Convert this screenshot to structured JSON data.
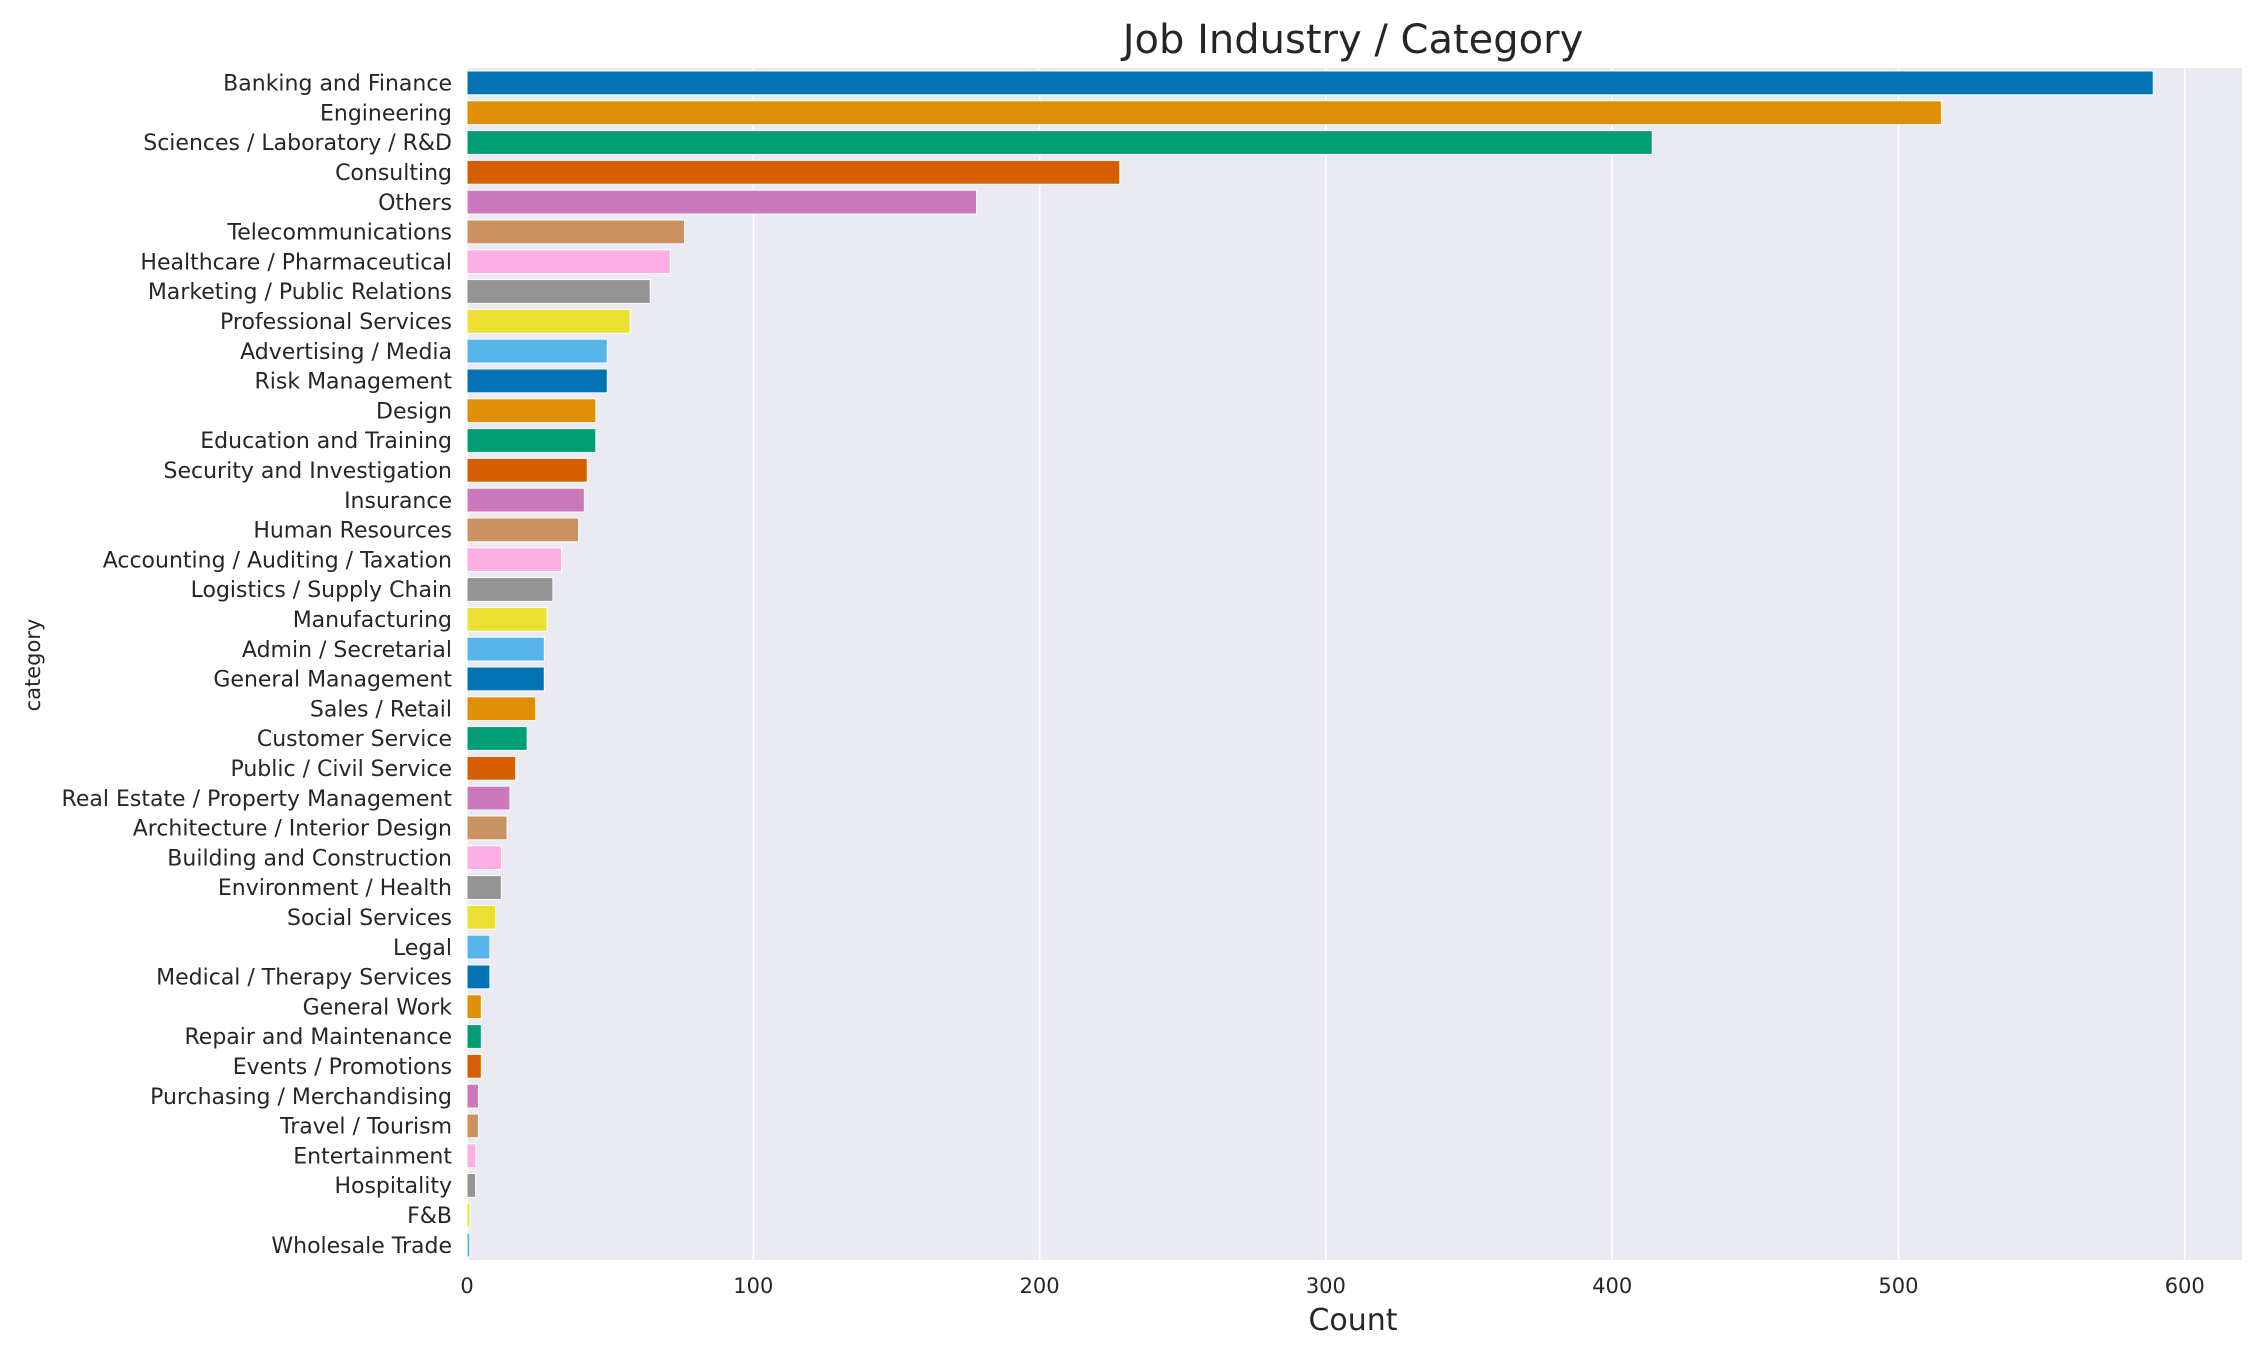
{
  "chart_data": {
    "type": "bar",
    "orientation": "horizontal",
    "title": "Job Industry / Category",
    "xlabel": "Count",
    "ylabel": "category",
    "xlim": [
      0,
      620
    ],
    "xticks": [
      0,
      100,
      200,
      300,
      400,
      500,
      600
    ],
    "grid": true,
    "background": "#EAEAF2",
    "palette": [
      "#0173B2",
      "#DE8F05",
      "#029E73",
      "#D55E00",
      "#CC78BC",
      "#CA9161",
      "#FBAFE4",
      "#949494",
      "#ECE133",
      "#56B4E9"
    ],
    "categories": [
      "Banking and Finance",
      "Engineering",
      "Sciences / Laboratory / R&D",
      "Consulting",
      "Others",
      "Telecommunications",
      "Healthcare / Pharmaceutical",
      "Marketing / Public Relations",
      "Professional Services",
      "Advertising / Media",
      "Risk Management",
      "Design",
      "Education and Training",
      "Security and Investigation",
      "Insurance",
      "Human Resources",
      "Accounting / Auditing / Taxation",
      "Logistics / Supply Chain",
      "Manufacturing",
      "Admin / Secretarial",
      "General Management",
      "Sales / Retail",
      "Customer Service",
      "Public / Civil Service",
      "Real Estate / Property Management",
      "Architecture / Interior Design",
      "Building and Construction",
      "Environment / Health",
      "Social Services",
      "Legal",
      "Medical / Therapy Services",
      "General Work",
      "Repair and Maintenance",
      "Events / Promotions",
      "Purchasing / Merchandising",
      "Travel / Tourism",
      "Entertainment",
      "Hospitality",
      "F&B",
      "Wholesale Trade"
    ],
    "values": [
      589,
      515,
      414,
      228,
      178,
      76,
      71,
      64,
      57,
      49,
      49,
      45,
      45,
      42,
      41,
      39,
      33,
      30,
      28,
      27,
      27,
      24,
      21,
      17,
      15,
      14,
      12,
      12,
      10,
      8,
      8,
      5,
      5,
      5,
      4,
      4,
      3,
      3,
      1,
      1
    ]
  }
}
